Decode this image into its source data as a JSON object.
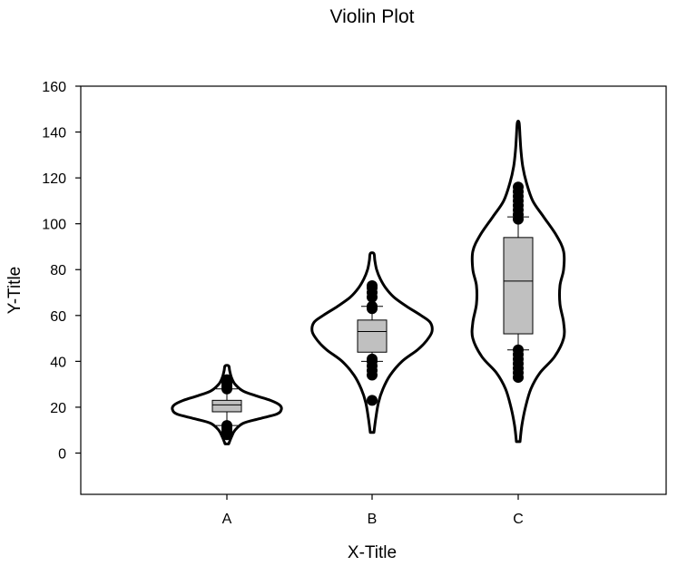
{
  "chart_data": {
    "type": "violin",
    "title": "Violin Plot",
    "xlabel": "X-Title",
    "ylabel": "Y-Title",
    "ylim": [
      -18,
      160
    ],
    "yticks": [
      0,
      20,
      40,
      60,
      80,
      100,
      120,
      140,
      160
    ],
    "categories": [
      "A",
      "B",
      "C"
    ],
    "grid": false,
    "legend": "none",
    "colors": {
      "violin_fill": "#ffffff",
      "violin_stroke": "#000000",
      "box_fill": "#c0c0c0",
      "point": "#000000"
    },
    "series": [
      {
        "category": "A",
        "violin": {
          "y": [
            4,
            7,
            10,
            13,
            15,
            17,
            19,
            21,
            23,
            25,
            27,
            30,
            33,
            36,
            38
          ],
          "halfwidth": [
            0.02,
            0.05,
            0.09,
            0.18,
            0.36,
            0.55,
            0.6,
            0.58,
            0.48,
            0.32,
            0.18,
            0.09,
            0.05,
            0.03,
            0.02
          ]
        },
        "box": {
          "whisker_low": 12,
          "q1": 18,
          "median": 21,
          "q3": 23,
          "whisker_high": 28
        },
        "outliers": [
          8,
          9,
          10,
          11,
          12,
          28,
          29,
          30,
          31,
          32
        ]
      },
      {
        "category": "B",
        "violin": {
          "y": [
            9,
            15,
            22,
            28,
            34,
            40,
            45,
            49,
            53,
            57,
            60,
            64,
            68,
            72,
            76,
            80,
            84,
            87
          ],
          "halfwidth": [
            0.02,
            0.04,
            0.07,
            0.12,
            0.2,
            0.33,
            0.5,
            0.6,
            0.66,
            0.64,
            0.54,
            0.38,
            0.24,
            0.15,
            0.09,
            0.05,
            0.03,
            0.02
          ]
        },
        "box": {
          "whisker_low": 40,
          "q1": 44,
          "median": 53,
          "q3": 58,
          "whisker_high": 64
        },
        "outliers": [
          23,
          34,
          36,
          38,
          40,
          41,
          63,
          64,
          68,
          70,
          72,
          73
        ]
      },
      {
        "category": "C",
        "violin": {
          "y": [
            5,
            12,
            20,
            28,
            35,
            42,
            50,
            57,
            65,
            73,
            80,
            88,
            95,
            103,
            110,
            118,
            125,
            132,
            138,
            144
          ],
          "halfwidth": [
            0.02,
            0.04,
            0.08,
            0.14,
            0.24,
            0.4,
            0.5,
            0.5,
            0.46,
            0.46,
            0.5,
            0.5,
            0.42,
            0.28,
            0.16,
            0.09,
            0.05,
            0.03,
            0.02,
            0.01
          ]
        },
        "box": {
          "whisker_low": 45,
          "q1": 52,
          "median": 75,
          "q3": 94,
          "whisker_high": 103
        },
        "outliers": [
          33,
          35,
          37,
          39,
          41,
          43,
          45,
          102,
          104,
          106,
          108,
          110,
          112,
          114,
          116
        ]
      }
    ]
  }
}
